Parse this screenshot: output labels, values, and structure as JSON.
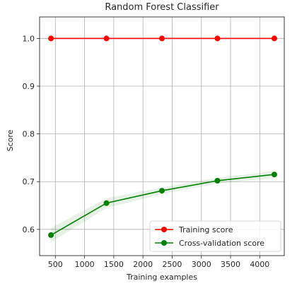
{
  "chart_data": {
    "type": "line",
    "title": "Random Forest Classifier",
    "xlabel": "Training examples",
    "ylabel": "Score",
    "xlim": [
      230,
      4420
    ],
    "ylim": [
      0.545,
      1.045
    ],
    "xticks": [
      500,
      1000,
      1500,
      2000,
      2500,
      3000,
      3500,
      4000
    ],
    "xtick_labels": [
      "500",
      "1000",
      "1500",
      "2000",
      "2500",
      "3000",
      "3500",
      "4000"
    ],
    "yticks": [
      0.6,
      0.7,
      0.8,
      0.9,
      1.0
    ],
    "ytick_labels": [
      "0.6",
      "0.7",
      "0.8",
      "0.9",
      "1.0"
    ],
    "grid": true,
    "legend_position": "lower-right",
    "x": [
      425,
      1375,
      2325,
      3275,
      4250
    ],
    "series": [
      {
        "name": "Training score",
        "color": "#ff0000",
        "values": [
          1.0,
          1.0,
          1.0,
          1.0,
          1.0
        ],
        "band_low": [
          1.0,
          1.0,
          1.0,
          1.0,
          1.0
        ],
        "band_high": [
          1.0,
          1.0,
          1.0,
          1.0,
          1.0
        ]
      },
      {
        "name": "Cross-validation score",
        "color": "#008000",
        "values": [
          0.588,
          0.655,
          0.681,
          0.702,
          0.715
        ],
        "band_low": [
          0.573,
          0.645,
          0.674,
          0.696,
          0.708
        ],
        "band_high": [
          0.603,
          0.665,
          0.688,
          0.708,
          0.722
        ]
      }
    ]
  }
}
